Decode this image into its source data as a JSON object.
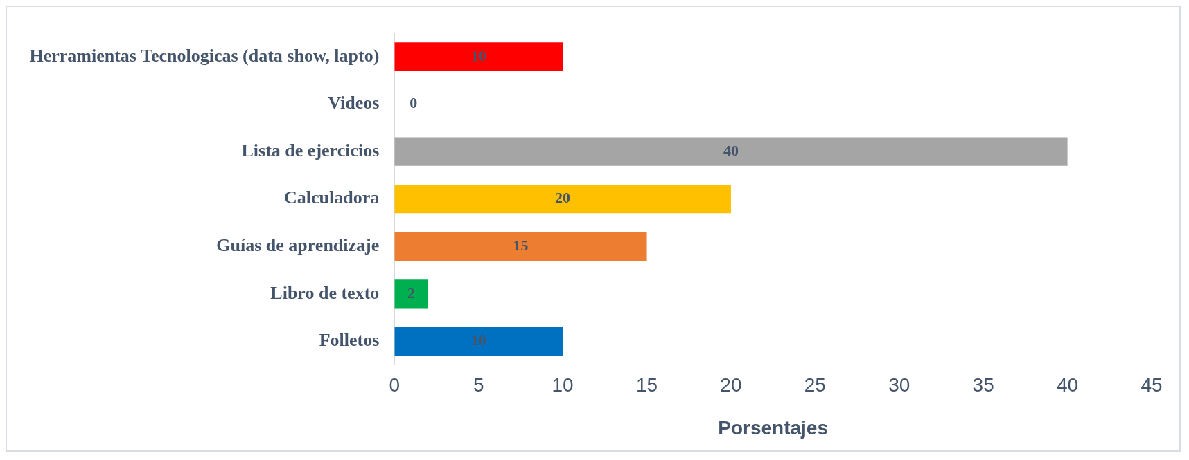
{
  "chart_data": {
    "type": "bar",
    "orientation": "horizontal",
    "xlabel": "Porsentajes",
    "categories": [
      "Herramientas Tecnologicas (data show, lapto)",
      "Videos",
      "Lista de ejercicios",
      "Calculadora",
      "Guías de aprendizaje",
      "Libro de texto",
      "Folletos"
    ],
    "values": [
      10,
      0,
      40,
      20,
      15,
      2,
      10
    ],
    "colors": [
      "#ff0000",
      "#4472c4",
      "#a5a5a5",
      "#ffc000",
      "#ed7d31",
      "#00b050",
      "#0070c0"
    ],
    "xlim": [
      0,
      45
    ],
    "xticks": [
      0,
      5,
      10,
      15,
      20,
      25,
      30,
      35,
      40,
      45
    ],
    "grid": false,
    "legend": false,
    "data_labels": true
  }
}
